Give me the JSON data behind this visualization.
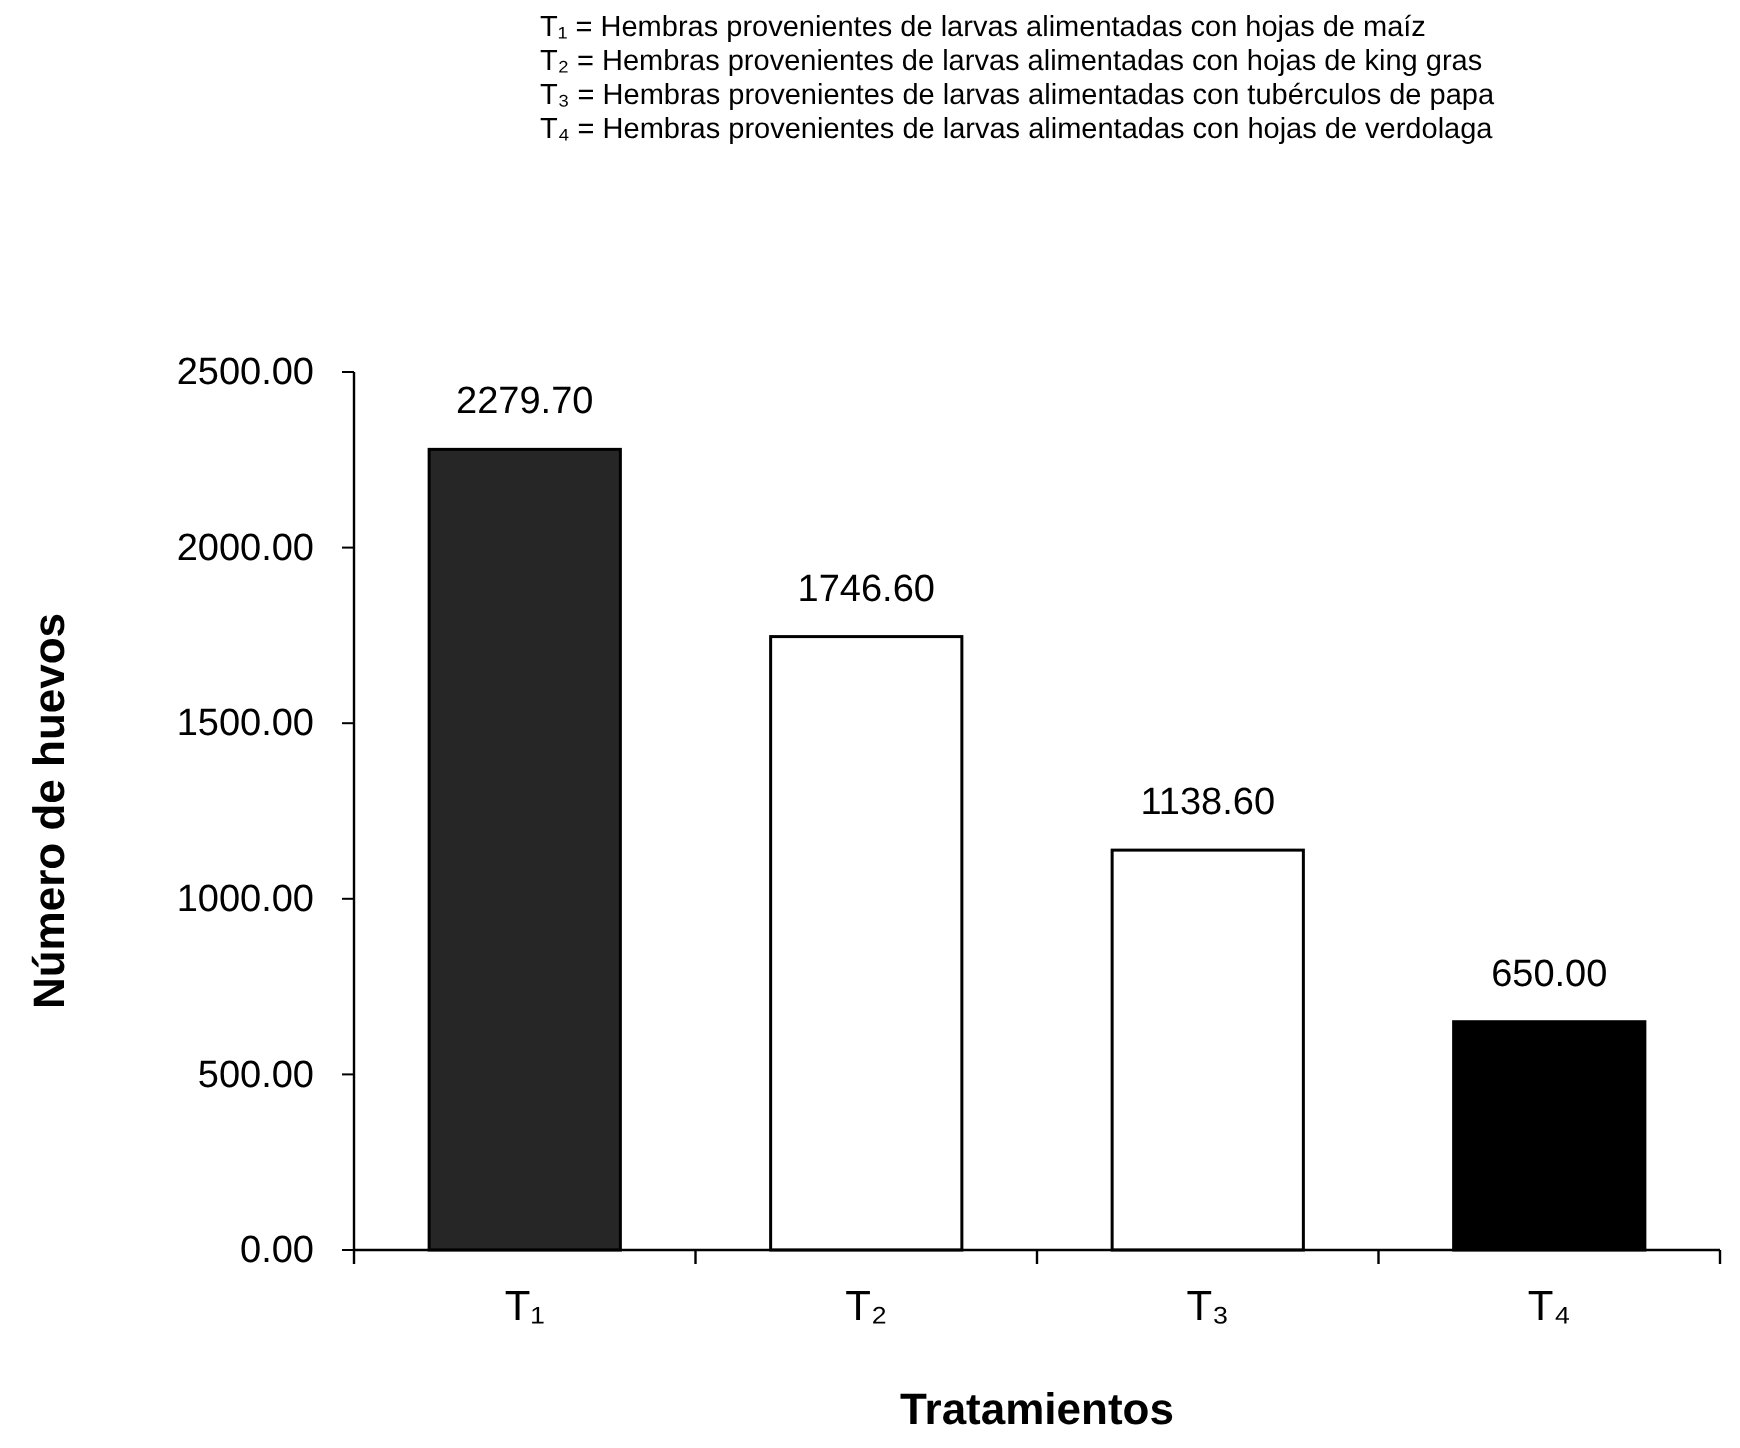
{
  "chart_data": {
    "type": "bar",
    "annotations": [
      "T₁ = Hembras provenientes de larvas alimentadas con hojas de maíz",
      "T₂ = Hembras provenientes de larvas alimentadas con hojas de king gras",
      "T₃ = Hembras provenientes de larvas alimentadas con tubérculos de papa",
      "T₄ = Hembras provenientes de larvas alimentadas con hojas de verdolaga"
    ],
    "xlabel": "Tratamientos",
    "ylabel": "Número de huevos",
    "categories": [
      "T₁",
      "T₂",
      "T₃",
      "T₄"
    ],
    "values": [
      2279.7,
      1746.6,
      1138.6,
      650.0
    ],
    "colors": [
      "#262626",
      "#ffffff",
      "#ffffff",
      "#000000"
    ],
    "value_labels": [
      "2279.70",
      "1746.60",
      "1138.60",
      "650.00"
    ],
    "ylim": [
      0,
      2500
    ],
    "yticks": [
      {
        "value": 0,
        "label": "0.00"
      },
      {
        "value": 500,
        "label": "500.00"
      },
      {
        "value": 1000,
        "label": "1000.00"
      },
      {
        "value": 1500,
        "label": "1500.00"
      },
      {
        "value": 2000,
        "label": "2000.00"
      },
      {
        "value": 2500,
        "label": "2500.00"
      }
    ],
    "grid": false
  }
}
